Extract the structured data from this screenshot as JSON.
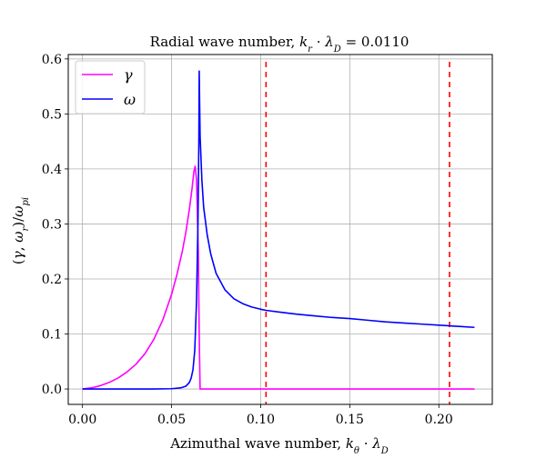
{
  "chart_data": {
    "type": "line",
    "title": "Radial wave number, k_r · λ_D = 0.0110",
    "xlabel": "Azimuthal wave number, k_θ · λ_D",
    "ylabel": "(γ, ω_r)/ω_pi",
    "xlim": [
      -0.008,
      0.23
    ],
    "ylim": [
      -0.028,
      0.608
    ],
    "xticks": [
      0.0,
      0.05,
      0.1,
      0.15,
      0.2
    ],
    "xtick_labels": [
      "0.00",
      "0.05",
      "0.10",
      "0.15",
      "0.20"
    ],
    "yticks": [
      0.0,
      0.1,
      0.2,
      0.3,
      0.4,
      0.5,
      0.6
    ],
    "ytick_labels": [
      "0.0",
      "0.1",
      "0.2",
      "0.3",
      "0.4",
      "0.5",
      "0.6"
    ],
    "grid": true,
    "legend_position": "top-left",
    "series": [
      {
        "name": "γ",
        "color": "#ff00ff",
        "points": [
          [
            0.0,
            0.0
          ],
          [
            0.005,
            0.002
          ],
          [
            0.01,
            0.006
          ],
          [
            0.015,
            0.012
          ],
          [
            0.02,
            0.02
          ],
          [
            0.025,
            0.031
          ],
          [
            0.03,
            0.045
          ],
          [
            0.035,
            0.064
          ],
          [
            0.04,
            0.09
          ],
          [
            0.045,
            0.125
          ],
          [
            0.05,
            0.172
          ],
          [
            0.053,
            0.208
          ],
          [
            0.056,
            0.25
          ],
          [
            0.058,
            0.285
          ],
          [
            0.06,
            0.327
          ],
          [
            0.0615,
            0.365
          ],
          [
            0.0625,
            0.395
          ],
          [
            0.0632,
            0.405
          ],
          [
            0.064,
            0.38
          ],
          [
            0.065,
            0.25
          ],
          [
            0.0655,
            0.1
          ],
          [
            0.066,
            0.0
          ],
          [
            0.08,
            0.0
          ],
          [
            0.1,
            0.0
          ],
          [
            0.15,
            0.0
          ],
          [
            0.2,
            0.0
          ],
          [
            0.22,
            0.0
          ]
        ]
      },
      {
        "name": "ω",
        "color": "#0000ff",
        "points": [
          [
            0.0,
            0.0
          ],
          [
            0.02,
            0.0
          ],
          [
            0.04,
            0.0
          ],
          [
            0.05,
            0.0005
          ],
          [
            0.055,
            0.002
          ],
          [
            0.058,
            0.005
          ],
          [
            0.06,
            0.012
          ],
          [
            0.061,
            0.02
          ],
          [
            0.062,
            0.035
          ],
          [
            0.063,
            0.07
          ],
          [
            0.064,
            0.16
          ],
          [
            0.0648,
            0.3
          ],
          [
            0.0653,
            0.45
          ],
          [
            0.0655,
            0.578
          ],
          [
            0.066,
            0.46
          ],
          [
            0.067,
            0.38
          ],
          [
            0.068,
            0.33
          ],
          [
            0.07,
            0.28
          ],
          [
            0.072,
            0.245
          ],
          [
            0.075,
            0.21
          ],
          [
            0.08,
            0.18
          ],
          [
            0.085,
            0.164
          ],
          [
            0.09,
            0.155
          ],
          [
            0.095,
            0.149
          ],
          [
            0.1,
            0.145
          ],
          [
            0.103,
            0.143
          ],
          [
            0.11,
            0.14
          ],
          [
            0.12,
            0.136
          ],
          [
            0.13,
            0.133
          ],
          [
            0.14,
            0.13
          ],
          [
            0.15,
            0.128
          ],
          [
            0.16,
            0.125
          ],
          [
            0.17,
            0.122
          ],
          [
            0.18,
            0.12
          ],
          [
            0.19,
            0.118
          ],
          [
            0.2,
            0.116
          ],
          [
            0.21,
            0.114
          ],
          [
            0.22,
            0.112
          ]
        ]
      }
    ],
    "vertical_lines": [
      {
        "x": 0.103,
        "color": "#ff0000",
        "style": "dashed"
      },
      {
        "x": 0.206,
        "color": "#ff0000",
        "style": "dashed"
      }
    ]
  }
}
